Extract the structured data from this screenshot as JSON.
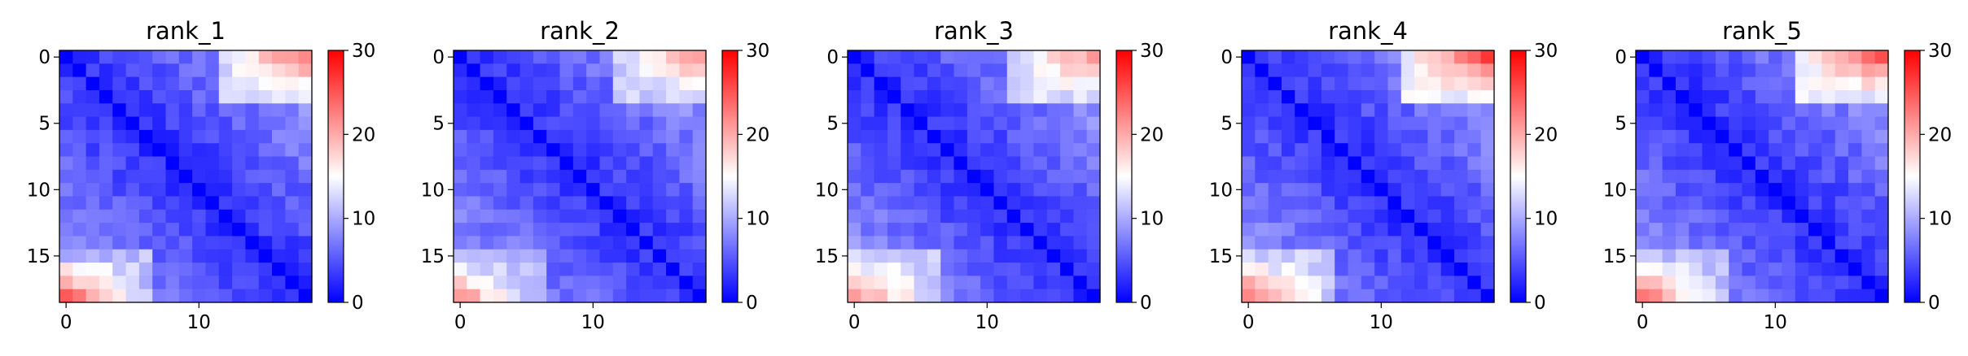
{
  "colormap": {
    "low": "#0000ff",
    "mid": "#ffffff",
    "high": "#ff0000"
  },
  "chart_data": [
    {
      "type": "heatmap",
      "title": "rank_1",
      "size": 19,
      "vmin": 0,
      "vmax": 30,
      "xticks": [
        0,
        10
      ],
      "yticks": [
        0,
        5,
        10,
        15
      ],
      "cbar_ticks": [
        0,
        10,
        20,
        30
      ],
      "hot_corners": {
        "top_right": [
          17,
          23
        ],
        "bottom_left": [
          16,
          25
        ]
      }
    },
    {
      "type": "heatmap",
      "title": "rank_2",
      "size": 19,
      "vmin": 0,
      "vmax": 30,
      "xticks": [
        0,
        10
      ],
      "yticks": [
        0,
        5,
        10,
        15
      ],
      "cbar_ticks": [
        0,
        10,
        20,
        30
      ],
      "hot_corners": {
        "top_right": [
          16,
          21
        ],
        "bottom_left": [
          15,
          21
        ]
      }
    },
    {
      "type": "heatmap",
      "title": "rank_3",
      "size": 19,
      "vmin": 0,
      "vmax": 30,
      "xticks": [
        0,
        10
      ],
      "yticks": [
        0,
        5,
        10,
        15
      ],
      "cbar_ticks": [
        0,
        10,
        20,
        30
      ],
      "hot_corners": {
        "top_right": [
          17,
          21
        ],
        "bottom_left": [
          17,
          21
        ]
      }
    },
    {
      "type": "heatmap",
      "title": "rank_4",
      "size": 19,
      "vmin": 0,
      "vmax": 30,
      "xticks": [
        0,
        10
      ],
      "yticks": [
        0,
        5,
        10,
        15
      ],
      "cbar_ticks": [
        0,
        10,
        20,
        30
      ],
      "hot_corners": {
        "top_right": [
          18,
          26
        ],
        "bottom_left": [
          17,
          22
        ]
      }
    },
    {
      "type": "heatmap",
      "title": "rank_5",
      "size": 19,
      "vmin": 0,
      "vmax": 30,
      "xticks": [
        0,
        10
      ],
      "yticks": [
        0,
        5,
        10,
        15
      ],
      "cbar_ticks": [
        0,
        10,
        20,
        30
      ],
      "hot_corners": {
        "top_right": [
          18,
          24
        ],
        "bottom_left": [
          16,
          23
        ]
      }
    }
  ]
}
